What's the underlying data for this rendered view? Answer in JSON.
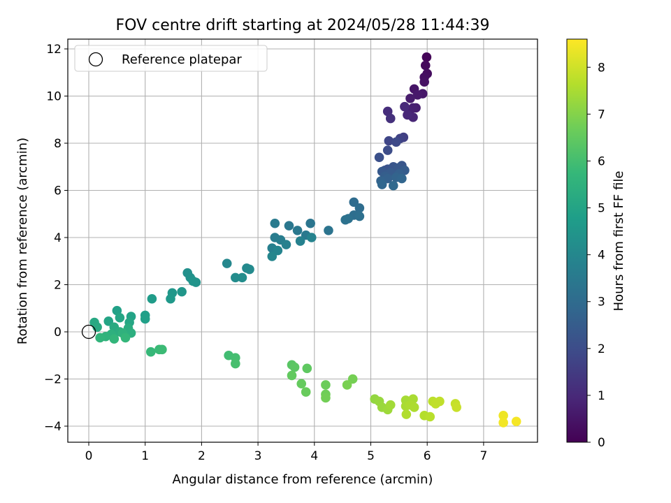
{
  "chart_data": {
    "type": "scatter",
    "title": "FOV centre drift starting at 2024/05/28 11:44:39",
    "xlabel": "Angular distance from reference (arcmin)",
    "ylabel": "Rotation from reference (arcmin)",
    "xlim": [
      -0.38,
      7.95
    ],
    "ylim": [
      -4.7,
      12.5
    ],
    "x_ticks": [
      0,
      1,
      2,
      3,
      4,
      5,
      6,
      7
    ],
    "y_ticks": [
      -4,
      -2,
      0,
      2,
      4,
      6,
      8,
      10,
      12
    ],
    "grid": true,
    "legend": {
      "placement": "top-left",
      "entries": [
        "Reference platepar"
      ]
    },
    "reference_point": {
      "x": 0,
      "y": 0
    },
    "colorbar": {
      "label": "Hours from first FF file",
      "range": [
        0,
        8.6
      ],
      "ticks": [
        0,
        1,
        2,
        3,
        4,
        5,
        6,
        7,
        8
      ],
      "colormap": "viridis"
    },
    "points": [
      [
        5.99,
        11.65,
        0.1
      ],
      [
        5.97,
        11.3,
        0.2
      ],
      [
        6.0,
        10.95,
        0.3
      ],
      [
        5.95,
        10.8,
        0.35
      ],
      [
        5.95,
        10.6,
        0.4
      ],
      [
        5.77,
        10.3,
        0.5
      ],
      [
        5.92,
        10.1,
        0.55
      ],
      [
        5.83,
        10.05,
        0.6
      ],
      [
        5.7,
        9.9,
        0.65
      ],
      [
        5.8,
        9.5,
        0.7
      ],
      [
        5.75,
        9.5,
        0.75
      ],
      [
        5.68,
        9.35,
        0.8
      ],
      [
        5.75,
        9.1,
        0.9
      ],
      [
        5.65,
        9.2,
        0.95
      ],
      [
        5.6,
        9.55,
        1.0
      ],
      [
        5.3,
        9.35,
        1.1
      ],
      [
        5.35,
        9.05,
        1.2
      ],
      [
        5.58,
        8.25,
        1.6
      ],
      [
        5.52,
        8.2,
        1.7
      ],
      [
        5.32,
        8.1,
        1.8
      ],
      [
        5.45,
        8.05,
        1.9
      ],
      [
        5.3,
        7.7,
        2.0
      ],
      [
        5.15,
        7.4,
        2.1
      ],
      [
        5.25,
        6.85,
        2.15
      ],
      [
        5.3,
        6.9,
        2.2
      ],
      [
        5.4,
        7.0,
        2.25
      ],
      [
        5.55,
        7.05,
        2.3
      ],
      [
        5.48,
        6.95,
        2.35
      ],
      [
        5.2,
        6.8,
        2.4
      ],
      [
        5.35,
        6.75,
        2.45
      ],
      [
        5.6,
        6.85,
        2.5
      ],
      [
        5.25,
        6.6,
        2.55
      ],
      [
        5.5,
        6.7,
        2.6
      ],
      [
        5.3,
        6.5,
        2.65
      ],
      [
        5.18,
        6.4,
        2.7
      ],
      [
        5.45,
        6.55,
        2.75
      ],
      [
        5.55,
        6.5,
        2.8
      ],
      [
        5.2,
        6.25,
        2.85
      ],
      [
        5.4,
        6.2,
        2.9
      ],
      [
        4.7,
        5.5,
        3.0
      ],
      [
        4.8,
        5.25,
        3.05
      ],
      [
        4.7,
        4.95,
        3.1
      ],
      [
        4.8,
        4.9,
        3.15
      ],
      [
        4.6,
        4.8,
        3.2
      ],
      [
        4.55,
        4.75,
        3.25
      ],
      [
        4.25,
        4.3,
        3.3
      ],
      [
        3.93,
        4.6,
        3.35
      ],
      [
        3.55,
        4.5,
        3.4
      ],
      [
        3.7,
        4.3,
        3.45
      ],
      [
        3.85,
        4.1,
        3.5
      ],
      [
        3.3,
        4.6,
        3.55
      ],
      [
        3.3,
        4.0,
        3.6
      ],
      [
        3.4,
        3.9,
        3.65
      ],
      [
        3.25,
        3.55,
        3.7
      ],
      [
        3.5,
        3.7,
        3.75
      ],
      [
        3.75,
        3.85,
        3.8
      ],
      [
        3.95,
        4.0,
        3.85
      ],
      [
        3.35,
        3.45,
        3.9
      ],
      [
        3.25,
        3.2,
        3.95
      ],
      [
        2.45,
        2.9,
        4.0
      ],
      [
        2.8,
        2.7,
        4.05
      ],
      [
        2.85,
        2.65,
        4.1
      ],
      [
        2.6,
        2.3,
        4.15
      ],
      [
        2.72,
        2.3,
        4.2
      ],
      [
        1.75,
        2.5,
        4.3
      ],
      [
        1.8,
        2.3,
        4.35
      ],
      [
        1.9,
        2.1,
        4.4
      ],
      [
        1.85,
        2.15,
        4.45
      ],
      [
        1.65,
        1.7,
        4.5
      ],
      [
        1.48,
        1.65,
        4.55
      ],
      [
        1.45,
        1.4,
        4.6
      ],
      [
        1.12,
        1.4,
        4.7
      ],
      [
        1.0,
        0.7,
        4.8
      ],
      [
        1.0,
        0.55,
        4.85
      ],
      [
        0.5,
        0.9,
        4.9
      ],
      [
        0.75,
        0.65,
        4.95
      ],
      [
        0.35,
        0.45,
        5.0
      ],
      [
        0.55,
        0.6,
        5.05
      ],
      [
        0.72,
        0.4,
        5.1
      ],
      [
        0.1,
        0.4,
        5.15
      ],
      [
        0.15,
        0.2,
        5.2
      ],
      [
        0.45,
        0.2,
        5.25
      ],
      [
        0.7,
        0.15,
        5.3
      ],
      [
        0.55,
        0.0,
        5.35
      ],
      [
        0.75,
        -0.05,
        5.4
      ],
      [
        0.4,
        -0.1,
        5.45
      ],
      [
        0.6,
        -0.05,
        5.5
      ],
      [
        0.3,
        -0.2,
        5.55
      ],
      [
        0.2,
        -0.25,
        5.6
      ],
      [
        0.45,
        -0.3,
        5.65
      ],
      [
        0.65,
        -0.25,
        5.7
      ],
      [
        1.1,
        -0.85,
        5.75
      ],
      [
        1.25,
        -0.75,
        5.8
      ],
      [
        1.3,
        -0.75,
        5.85
      ],
      [
        2.48,
        -1.0,
        5.95
      ],
      [
        2.6,
        -1.1,
        6.0
      ],
      [
        2.6,
        -1.35,
        6.05
      ],
      [
        3.6,
        -1.4,
        6.35
      ],
      [
        3.65,
        -1.5,
        6.4
      ],
      [
        3.87,
        -1.55,
        6.45
      ],
      [
        3.6,
        -1.85,
        6.5
      ],
      [
        3.77,
        -2.2,
        6.55
      ],
      [
        3.85,
        -2.55,
        6.6
      ],
      [
        4.2,
        -2.25,
        6.65
      ],
      [
        4.2,
        -2.65,
        6.7
      ],
      [
        4.2,
        -2.8,
        6.75
      ],
      [
        4.68,
        -2.0,
        6.8
      ],
      [
        4.58,
        -2.25,
        6.85
      ],
      [
        5.07,
        -2.85,
        7.2
      ],
      [
        5.15,
        -2.95,
        7.25
      ],
      [
        5.2,
        -3.2,
        7.3
      ],
      [
        5.3,
        -3.3,
        7.35
      ],
      [
        5.35,
        -3.1,
        7.4
      ],
      [
        5.62,
        -2.9,
        7.45
      ],
      [
        5.75,
        -2.85,
        7.5
      ],
      [
        5.62,
        -3.15,
        7.5
      ],
      [
        5.7,
        -3.1,
        7.55
      ],
      [
        5.77,
        -3.2,
        7.55
      ],
      [
        5.63,
        -3.5,
        7.6
      ],
      [
        5.95,
        -3.55,
        7.65
      ],
      [
        6.05,
        -3.6,
        7.7
      ],
      [
        6.1,
        -2.95,
        7.75
      ],
      [
        6.15,
        -3.05,
        7.8
      ],
      [
        6.22,
        -2.95,
        7.8
      ],
      [
        6.5,
        -3.05,
        7.85
      ],
      [
        6.52,
        -3.2,
        7.9
      ],
      [
        7.35,
        -3.55,
        8.4
      ],
      [
        7.35,
        -3.85,
        8.45
      ],
      [
        7.58,
        -3.8,
        8.5
      ]
    ]
  }
}
